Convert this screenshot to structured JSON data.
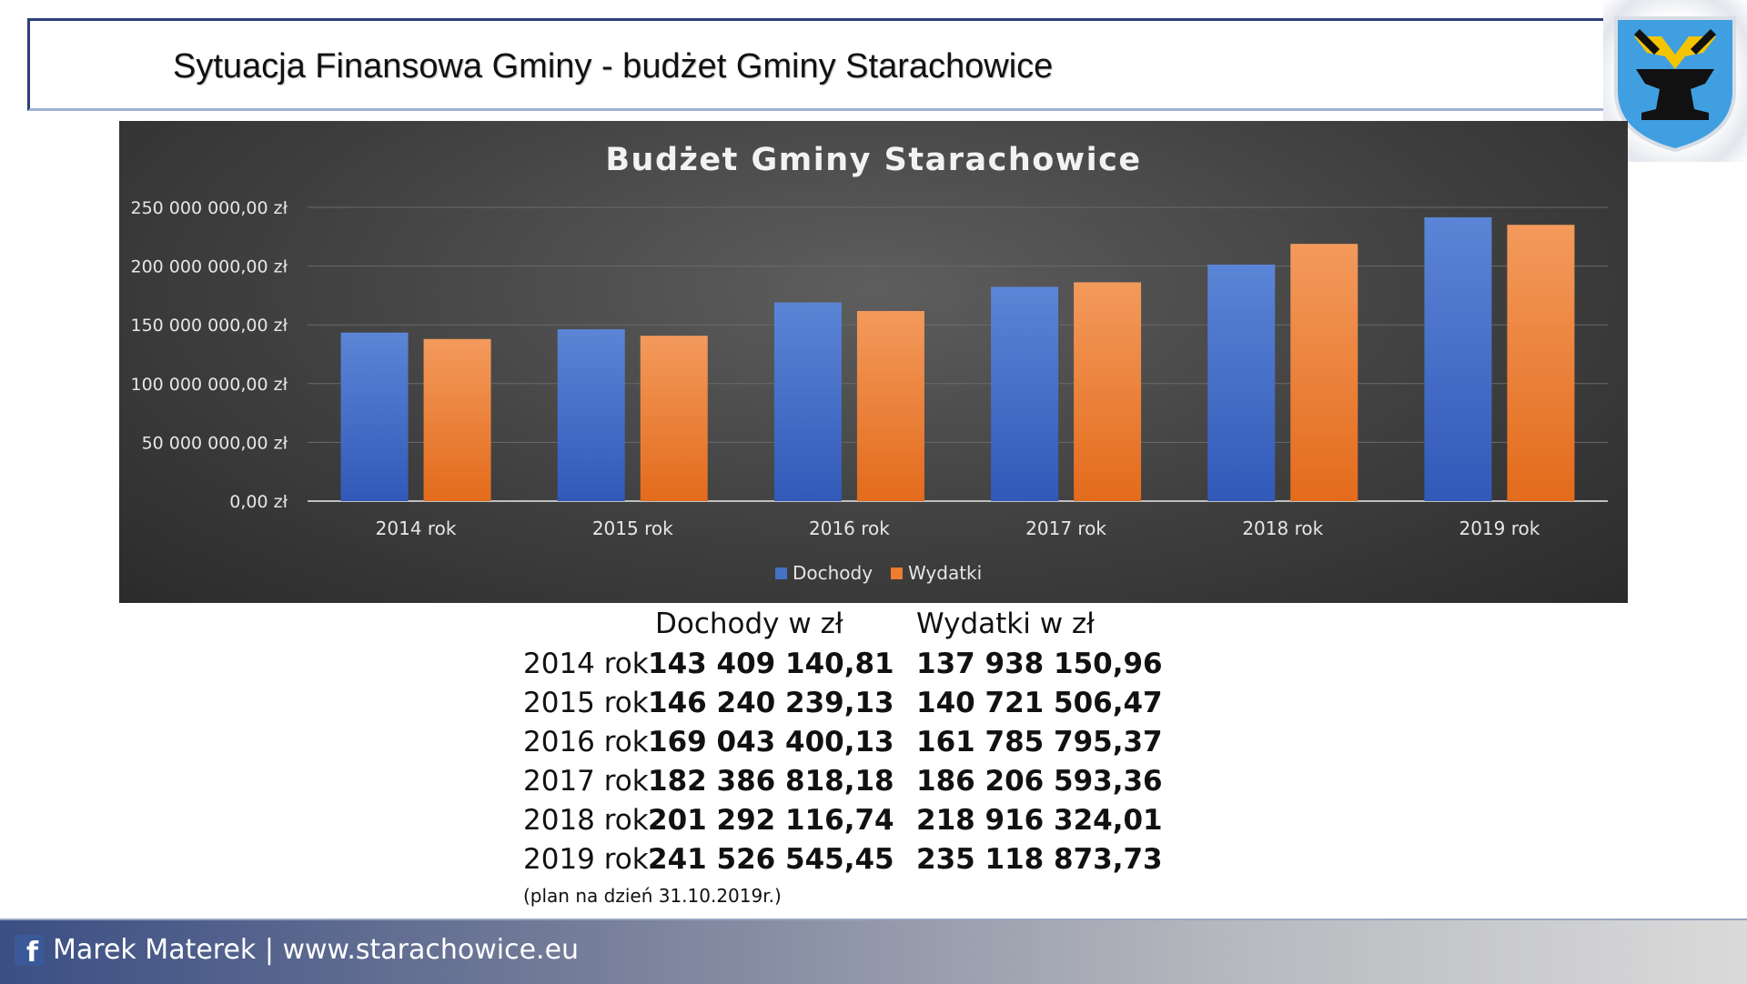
{
  "slide": {
    "title": "Sytuacja Finansowa Gminy - budżet Gminy Starachowice"
  },
  "crest": {
    "icon": "hammers-anvil-crest-icon",
    "colors": {
      "field": "#3f9fe0",
      "gold": "#f5c400",
      "black": "#111111"
    }
  },
  "chart_data": {
    "type": "bar",
    "title": "Budżet Gminy Starachowice",
    "categories": [
      "2014 rok",
      "2015 rok",
      "2016 rok",
      "2017 rok",
      "2018 rok",
      "2019 rok"
    ],
    "series": [
      {
        "name": "Dochody",
        "color": "#4472c4",
        "values": [
          143409140.81,
          146240239.13,
          169043400.13,
          182386818.18,
          201292116.74,
          241526545.45
        ]
      },
      {
        "name": "Wydatki",
        "color": "#ed7d31",
        "values": [
          137938150.96,
          140721506.47,
          161785795.37,
          186206593.36,
          218916324.01,
          235118873.73
        ]
      }
    ],
    "yticks": [
      "0,00 zł",
      "50 000 000,00 zł",
      "100 000 000,00 zł",
      "150 000 000,00 zł",
      "200 000 000,00 zł",
      "250 000 000,00 zł"
    ],
    "ylim": [
      0,
      250000000
    ],
    "grid": true,
    "legend_position": "bottom"
  },
  "table": {
    "headers": [
      "Dochody w zł",
      "Wydatki w zł"
    ],
    "rows": [
      {
        "year": "2014 rok",
        "dochody": "143 409 140,81",
        "wydatki": "137 938 150,96"
      },
      {
        "year": "2015 rok",
        "dochody": "146 240 239,13",
        "wydatki": "140 721 506,47"
      },
      {
        "year": "2016 rok",
        "dochody": "169 043 400,13",
        "wydatki": "161 785 795,37"
      },
      {
        "year": "2017 rok",
        "dochody": "182 386 818,18",
        "wydatki": "186 206 593,36"
      },
      {
        "year": "2018 rok",
        "dochody": "201 292 116,74",
        "wydatki": "218 916 324,01"
      },
      {
        "year": "2019 rok",
        "dochody": "241 526 545,45",
        "wydatki": "235 118 873,73"
      }
    ],
    "note": "(plan na dzień 31.10.2019r.)"
  },
  "footer": {
    "icon": "facebook-icon",
    "text": "Marek Materek | www.starachowice.eu"
  }
}
